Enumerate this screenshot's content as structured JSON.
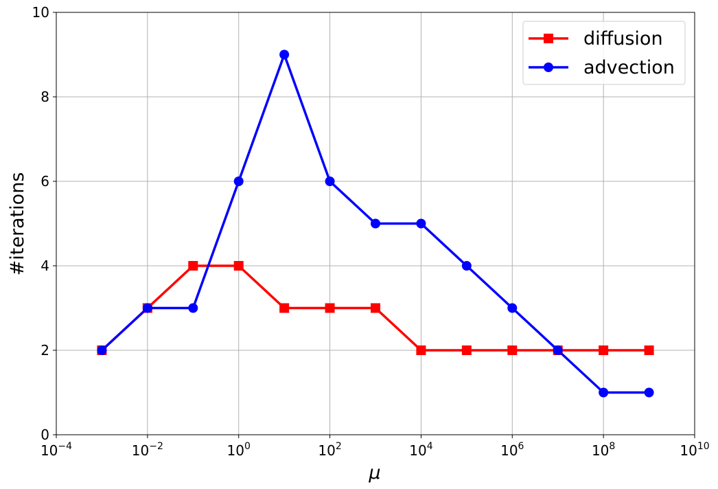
{
  "chart_data": {
    "type": "line",
    "xlabel": "μ",
    "ylabel": "#iterations",
    "x": [
      0.001,
      0.01,
      0.1,
      1,
      10,
      100,
      1000,
      10000,
      100000,
      1000000,
      10000000,
      100000000,
      1000000000
    ],
    "series": [
      {
        "name": "diffusion",
        "color": "#ff0000",
        "marker": "square",
        "values": [
          2,
          3,
          4,
          4,
          3,
          3,
          3,
          2,
          2,
          2,
          2,
          2,
          2
        ]
      },
      {
        "name": "advection",
        "color": "#0000ff",
        "marker": "circle",
        "values": [
          2,
          3,
          3,
          6,
          9,
          6,
          5,
          5,
          4,
          3,
          2,
          1,
          1
        ]
      }
    ],
    "xscale": "log",
    "xlim": [
      0.0001,
      10000000000
    ],
    "xticks": [
      {
        "value": 0.0001,
        "label": "10−4"
      },
      {
        "value": 0.01,
        "label": "10−2"
      },
      {
        "value": 1,
        "label": "100"
      },
      {
        "value": 100,
        "label": "102"
      },
      {
        "value": 10000,
        "label": "104"
      },
      {
        "value": 1000000,
        "label": "106"
      },
      {
        "value": 100000000,
        "label": "108"
      },
      {
        "value": 10000000000,
        "label": "1010"
      }
    ],
    "ylim": [
      0,
      10
    ],
    "yticks": [
      0,
      2,
      4,
      6,
      8,
      10
    ],
    "grid": true,
    "legend": "upper right"
  }
}
